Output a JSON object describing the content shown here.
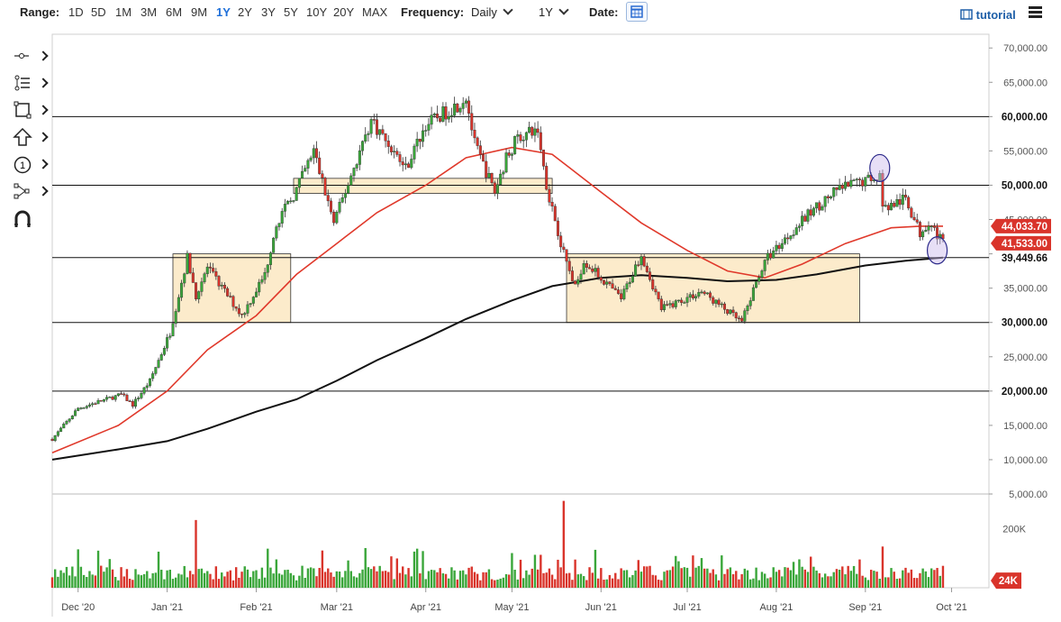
{
  "toolbar": {
    "range_label": "Range:",
    "ranges": [
      "1D",
      "5D",
      "1M",
      "3M",
      "6M",
      "9M",
      "1Y",
      "2Y",
      "3Y",
      "5Y",
      "10Y",
      "20Y",
      "MAX"
    ],
    "active_range": "1Y",
    "frequency_label": "Frequency:",
    "frequency_value": "Daily",
    "period_value": "1Y",
    "date_label": "Date:",
    "calendar_icon": "calendar-icon",
    "tutorial_label": "tutorial",
    "tutorial_icon": "film-icon",
    "menu_icon": "hamburger-menu-icon"
  },
  "side_tools": [
    "line-tool-icon",
    "fib-tool-icon",
    "rectangle-tool-icon",
    "arrow-up-tool-icon",
    "counter-tool-icon",
    "pattern-tool-icon",
    "magnet-icon"
  ],
  "colors": {
    "up": "#3aa63a",
    "down": "#d9342b",
    "ma_short": "#e0392b",
    "ma_long": "#111111",
    "zone_fill": "#fbe7c2",
    "zone_stroke": "#333333",
    "marker_fill": "#c9b8ec",
    "marker_stroke": "#2c2a8a"
  },
  "chart_data": {
    "type": "candlestick",
    "x_range": [
      "2020-11-22",
      "2021-10-14"
    ],
    "ylim": [
      5000,
      72000
    ],
    "y_ticks": [
      "70,000.00",
      "65,000.00",
      "60,000.00",
      "55,000.00",
      "50,000.00",
      "45,000.00",
      "40,000.00",
      "35,000.00",
      "30,000.00",
      "25,000.00",
      "20,000.00",
      "15,000.00",
      "10,000.00",
      "5,000.00"
    ],
    "x_ticks": [
      {
        "date": "2020-12-01",
        "label": "Dec '20"
      },
      {
        "date": "2021-01-01",
        "label": "Jan '21"
      },
      {
        "date": "2021-02-01",
        "label": "Feb '21"
      },
      {
        "date": "2021-03-01",
        "label": "Mar '21"
      },
      {
        "date": "2021-04-01",
        "label": "Apr '21"
      },
      {
        "date": "2021-05-01",
        "label": "May '21"
      },
      {
        "date": "2021-06-01",
        "label": "Jun '21"
      },
      {
        "date": "2021-07-01",
        "label": "Jul '21"
      },
      {
        "date": "2021-08-01",
        "label": "Aug '21"
      },
      {
        "date": "2021-09-01",
        "label": "Sep '21"
      },
      {
        "date": "2021-10-01",
        "label": "Oct '21"
      }
    ],
    "price_path": [
      [
        "2020-11-22",
        13000
      ],
      [
        "2020-12-01",
        17500
      ],
      [
        "2020-12-16",
        19500
      ],
      [
        "2020-12-20",
        18000
      ],
      [
        "2020-12-26",
        21500
      ],
      [
        "2021-01-02",
        28500
      ],
      [
        "2021-01-08",
        39500
      ],
      [
        "2021-01-11",
        34000
      ],
      [
        "2021-01-15",
        38000
      ],
      [
        "2021-01-27",
        31000
      ],
      [
        "2021-02-04",
        37000
      ],
      [
        "2021-02-08",
        44500
      ],
      [
        "2021-02-14",
        48500
      ],
      [
        "2021-02-21",
        55000
      ],
      [
        "2021-02-28",
        44500
      ],
      [
        "2021-03-13",
        59500
      ],
      [
        "2021-03-25",
        52500
      ],
      [
        "2021-04-01",
        58800
      ],
      [
        "2021-04-13",
        62000
      ],
      [
        "2021-04-15",
        63000
      ],
      [
        "2021-04-18",
        56000
      ],
      [
        "2021-04-25",
        49000
      ],
      [
        "2021-04-29",
        54000
      ],
      [
        "2021-05-03",
        57000
      ],
      [
        "2021-05-10",
        58000
      ],
      [
        "2021-05-13",
        50000
      ],
      [
        "2021-05-19",
        40000
      ],
      [
        "2021-05-23",
        35000
      ],
      [
        "2021-05-26",
        39000
      ],
      [
        "2021-06-08",
        33500
      ],
      [
        "2021-06-15",
        40000
      ],
      [
        "2021-06-22",
        32000
      ],
      [
        "2021-07-06",
        34500
      ],
      [
        "2021-07-20",
        30000
      ],
      [
        "2021-07-26",
        37000
      ],
      [
        "2021-07-29",
        39500
      ],
      [
        "2021-08-07",
        43500
      ],
      [
        "2021-08-14",
        46500
      ],
      [
        "2021-08-23",
        49500
      ],
      [
        "2021-09-06",
        51500
      ],
      [
        "2021-09-07",
        46500
      ],
      [
        "2021-09-15",
        48000
      ],
      [
        "2021-09-20",
        43000
      ],
      [
        "2021-09-23",
        44800
      ],
      [
        "2021-09-28",
        41500
      ]
    ],
    "ma_short_path": [
      [
        "2020-11-22",
        11000
      ],
      [
        "2020-12-15",
        15000
      ],
      [
        "2021-01-01",
        20000
      ],
      [
        "2021-01-15",
        26000
      ],
      [
        "2021-02-01",
        31000
      ],
      [
        "2021-02-15",
        37000
      ],
      [
        "2021-03-01",
        41500
      ],
      [
        "2021-03-15",
        46000
      ],
      [
        "2021-04-01",
        50000
      ],
      [
        "2021-04-15",
        54000
      ],
      [
        "2021-05-01",
        55500
      ],
      [
        "2021-05-15",
        54500
      ],
      [
        "2021-06-01",
        49000
      ],
      [
        "2021-06-15",
        44500
      ],
      [
        "2021-07-01",
        40500
      ],
      [
        "2021-07-15",
        37500
      ],
      [
        "2021-07-28",
        36500
      ],
      [
        "2021-08-10",
        38500
      ],
      [
        "2021-08-25",
        41500
      ],
      [
        "2021-09-10",
        43800
      ],
      [
        "2021-09-20",
        44033.7
      ],
      [
        "2021-09-28",
        44033.7
      ]
    ],
    "ma_long_path": [
      [
        "2020-11-22",
        10000
      ],
      [
        "2020-12-15",
        11500
      ],
      [
        "2021-01-01",
        12700
      ],
      [
        "2021-01-15",
        14500
      ],
      [
        "2021-02-01",
        17000
      ],
      [
        "2021-02-15",
        18800
      ],
      [
        "2021-03-01",
        21500
      ],
      [
        "2021-03-15",
        24500
      ],
      [
        "2021-04-01",
        27700
      ],
      [
        "2021-04-15",
        30500
      ],
      [
        "2021-05-01",
        33200
      ],
      [
        "2021-05-15",
        35300
      ],
      [
        "2021-06-01",
        36500
      ],
      [
        "2021-06-15",
        36900
      ],
      [
        "2021-07-01",
        36500
      ],
      [
        "2021-07-15",
        36000
      ],
      [
        "2021-08-01",
        36200
      ],
      [
        "2021-08-15",
        37000
      ],
      [
        "2021-09-01",
        38300
      ],
      [
        "2021-09-15",
        39000
      ],
      [
        "2021-09-28",
        39449.66
      ]
    ],
    "horizontal_levels": [
      {
        "value": 60000,
        "label": "60,000.00"
      },
      {
        "value": 50000,
        "label": "50,000.00"
      },
      {
        "value": 39449.66,
        "label": "39,449.66"
      },
      {
        "value": 30000,
        "label": "30,000.00"
      },
      {
        "value": 20000,
        "label": "20,000.00"
      }
    ],
    "price_tags": [
      {
        "value": 44033.7,
        "label": "44,033.70"
      },
      {
        "value": 41533,
        "label": "41,533.00"
      }
    ],
    "zones": [
      {
        "x0": "2021-01-03",
        "x1": "2021-02-13",
        "y0": 30000,
        "y1": 40000
      },
      {
        "x0": "2021-02-14",
        "x1": "2021-05-15",
        "y0": 48800,
        "y1": 51000
      },
      {
        "x0": "2021-05-20",
        "x1": "2021-08-30",
        "y0": 30000,
        "y1": 40000
      }
    ],
    "markers": [
      {
        "date": "2021-09-06",
        "value": 52500
      },
      {
        "date": "2021-09-26",
        "value": 40500
      }
    ],
    "volume": {
      "y_ticks": [
        "200K"
      ],
      "tag": "24K",
      "spikes": [
        {
          "date": "2021-01-11",
          "value": 230000
        },
        {
          "date": "2021-05-19",
          "value": 295000
        },
        {
          "date": "2021-09-07",
          "value": 140000
        }
      ]
    }
  }
}
